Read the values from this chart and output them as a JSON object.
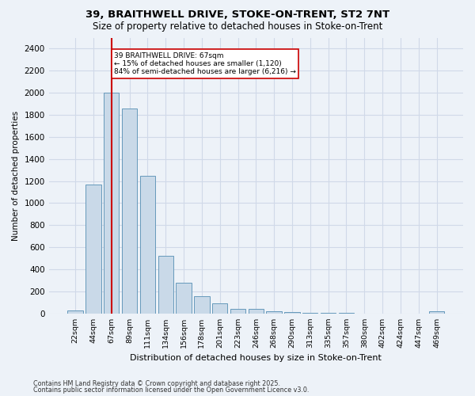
{
  "title1": "39, BRAITHWELL DRIVE, STOKE-ON-TRENT, ST2 7NT",
  "title2": "Size of property relative to detached houses in Stoke-on-Trent",
  "xlabel": "Distribution of detached houses by size in Stoke-on-Trent",
  "ylabel": "Number of detached properties",
  "bar_labels": [
    "22sqm",
    "44sqm",
    "67sqm",
    "89sqm",
    "111sqm",
    "134sqm",
    "156sqm",
    "178sqm",
    "201sqm",
    "223sqm",
    "246sqm",
    "268sqm",
    "290sqm",
    "313sqm",
    "335sqm",
    "357sqm",
    "380sqm",
    "402sqm",
    "424sqm",
    "447sqm",
    "469sqm"
  ],
  "bar_values": [
    25,
    1170,
    2000,
    1860,
    1245,
    520,
    275,
    155,
    95,
    45,
    45,
    18,
    15,
    5,
    3,
    3,
    2,
    2,
    2,
    2,
    18
  ],
  "bar_color": "#c9d9e8",
  "bar_edge_color": "#6699bb",
  "grid_color": "#d0d9e8",
  "background_color": "#edf2f8",
  "annotation_text": "39 BRAITHWELL DRIVE: 67sqm\n← 15% of detached houses are smaller (1,120)\n84% of semi-detached houses are larger (6,216) →",
  "vline_index": 2,
  "vline_color": "#cc0000",
  "annotation_box_facecolor": "#ffffff",
  "annotation_box_edgecolor": "#cc0000",
  "footer1": "Contains HM Land Registry data © Crown copyright and database right 2025.",
  "footer2": "Contains public sector information licensed under the Open Government Licence v3.0.",
  "ylim": [
    0,
    2500
  ],
  "yticks": [
    0,
    200,
    400,
    600,
    800,
    1000,
    1200,
    1400,
    1600,
    1800,
    2000,
    2200,
    2400
  ]
}
